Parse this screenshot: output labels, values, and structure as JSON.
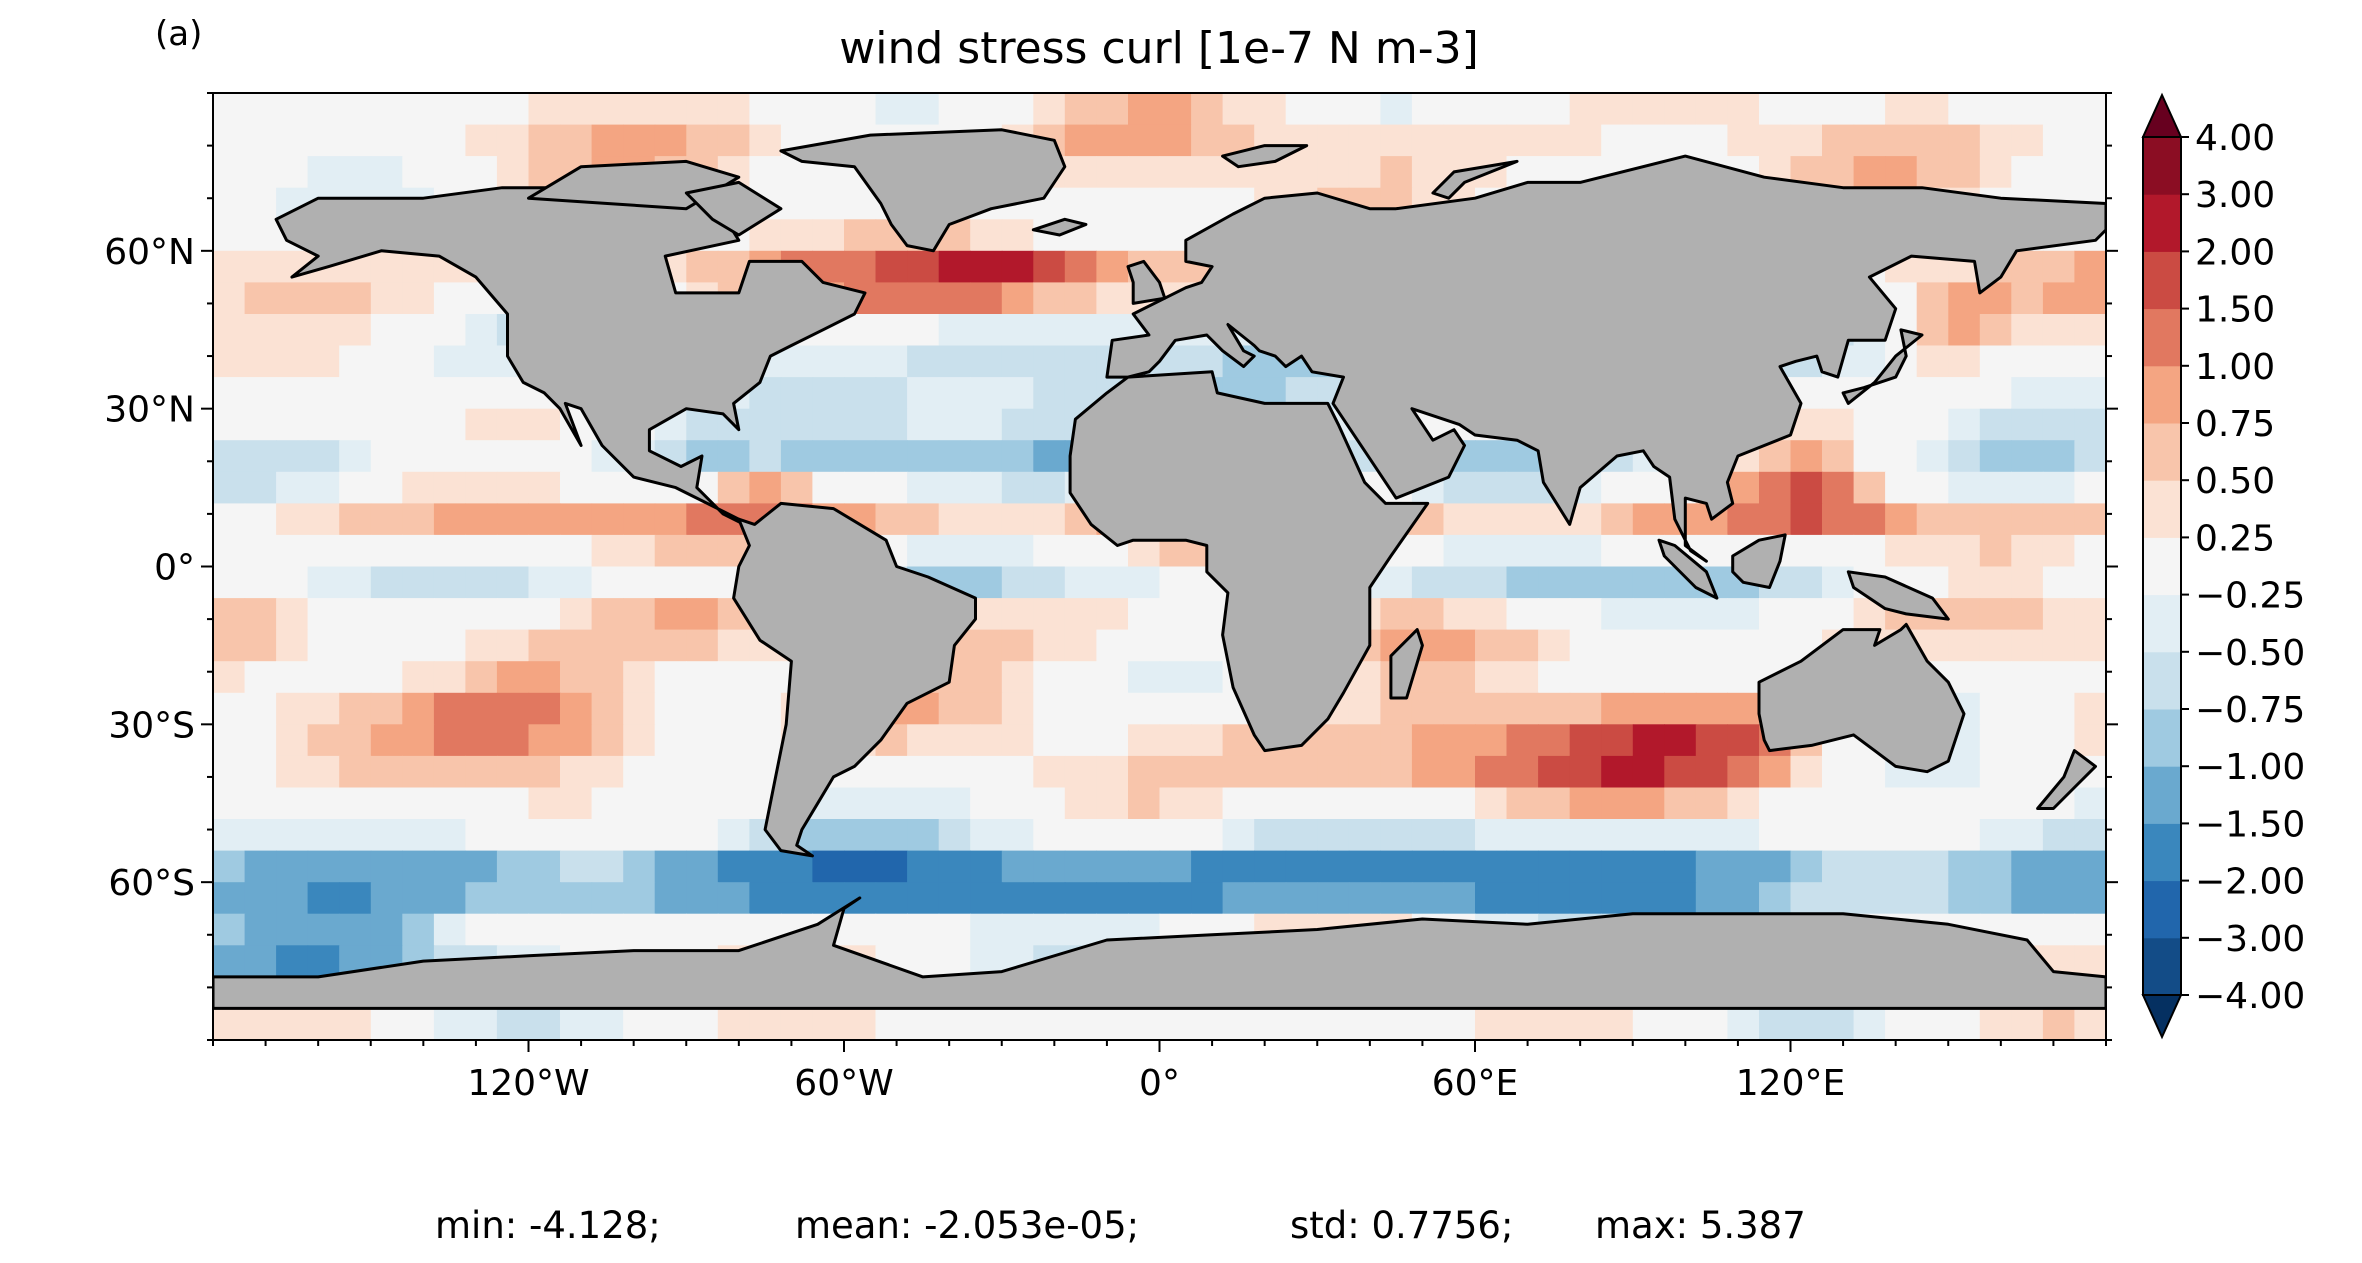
{
  "panel_label": "(a)",
  "title": "wind stress curl [1e-7 N m-3]",
  "map": {
    "projection": "plate-carree",
    "land_color": "#b0b0b0",
    "coastline_color": "#000000",
    "lon_ticks": [
      {
        "lon": -120,
        "label": "120°W"
      },
      {
        "lon": -60,
        "label": "60°W"
      },
      {
        "lon": 0,
        "label": "0°"
      },
      {
        "lon": 60,
        "label": "60°E"
      },
      {
        "lon": 120,
        "label": "120°E"
      }
    ],
    "lat_ticks": [
      {
        "lat": 60,
        "label": "60°N"
      },
      {
        "lat": 30,
        "label": "30°N"
      },
      {
        "lat": 0,
        "label": "0°"
      },
      {
        "lat": -30,
        "label": "30°S"
      },
      {
        "lat": -60,
        "label": "60°S"
      }
    ]
  },
  "colorbar": {
    "extend": "both",
    "levels": [
      "−4.00",
      "−3.00",
      "−2.00",
      "−1.50",
      "−1.00",
      "−0.75",
      "−0.50",
      "−0.25",
      "0.25",
      "0.50",
      "0.75",
      "1.00",
      "1.50",
      "2.00",
      "3.00",
      "4.00"
    ],
    "colors": [
      "#053061",
      "#134c87",
      "#2166ac",
      "#3a87bd",
      "#6aa9cf",
      "#9fcae1",
      "#c9e0ec",
      "#e2eef4",
      "#f5f5f5",
      "#fbe2d4",
      "#f8c5ab",
      "#f4a582",
      "#e17860",
      "#cb4b43",
      "#b2182b",
      "#8b0d23",
      "#67001f"
    ]
  },
  "chart_data": {
    "type": "heatmap",
    "title": "wind stress curl [1e-7 N m-3]",
    "unit": "1e-7 N m-3",
    "x_axis": "longitude",
    "y_axis": "latitude",
    "xlim": [
      -180,
      180
    ],
    "ylim": [
      -90,
      90
    ],
    "stats": {
      "min": "-4.128",
      "mean": "-2.053e-05",
      "std": "0.7756",
      "max": "5.387"
    }
  },
  "stats_text": {
    "min": "min: -4.128;",
    "mean": "mean: -2.053e-05;",
    "std": "std: 0.7756;",
    "max": "max: 5.387"
  }
}
